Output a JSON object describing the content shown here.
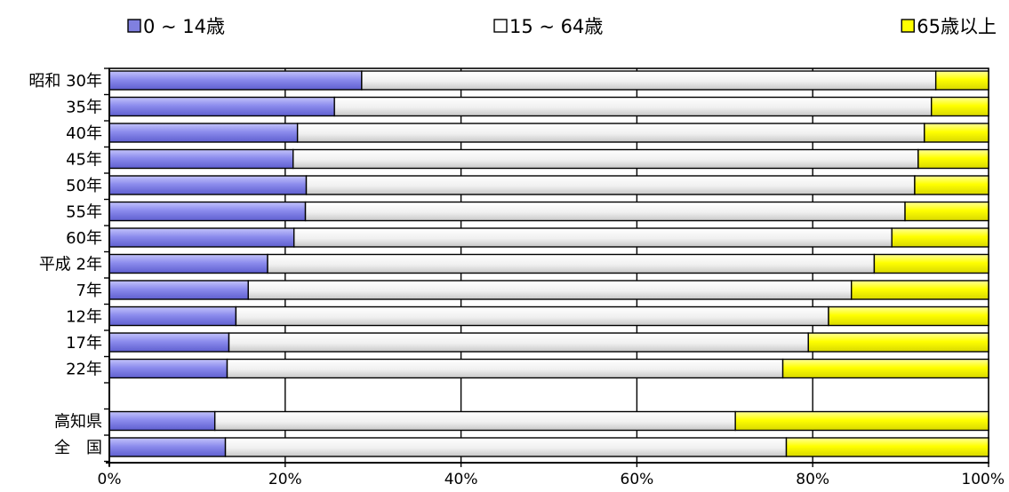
{
  "chart_data": {
    "type": "bar",
    "orientation": "horizontal",
    "stacked": "percent",
    "categories": [
      "昭和 30年",
      "35年",
      "40年",
      "45年",
      "50年",
      "55年",
      "60年",
      "平成 2年",
      "7年",
      "12年",
      "17年",
      "22年",
      "",
      "高知県",
      "全　国"
    ],
    "series": [
      {
        "name": "0 ~ 14歳",
        "color": "#8080e0",
        "values": [
          28.7,
          25.6,
          21.4,
          20.9,
          22.4,
          22.3,
          21.0,
          18.0,
          15.8,
          14.4,
          13.6,
          13.4,
          null,
          12.0,
          13.2
        ]
      },
      {
        "name": "15 ~ 64歳",
        "color": "#ffffff",
        "values": [
          65.3,
          67.9,
          71.3,
          71.1,
          69.2,
          68.2,
          68.0,
          69.0,
          68.6,
          67.4,
          65.9,
          63.2,
          null,
          59.2,
          63.8
        ]
      },
      {
        "name": "65歳以上",
        "color": "#ffff00",
        "values": [
          6.0,
          6.5,
          7.3,
          8.0,
          8.4,
          9.5,
          11.0,
          13.0,
          15.6,
          18.2,
          20.5,
          23.4,
          null,
          28.8,
          23.0
        ]
      }
    ],
    "xlim": [
      0,
      100
    ],
    "xticks": [
      "0%",
      "20%",
      "40%",
      "60%",
      "80%",
      "100%"
    ],
    "grid": true,
    "legend_position": "top"
  }
}
